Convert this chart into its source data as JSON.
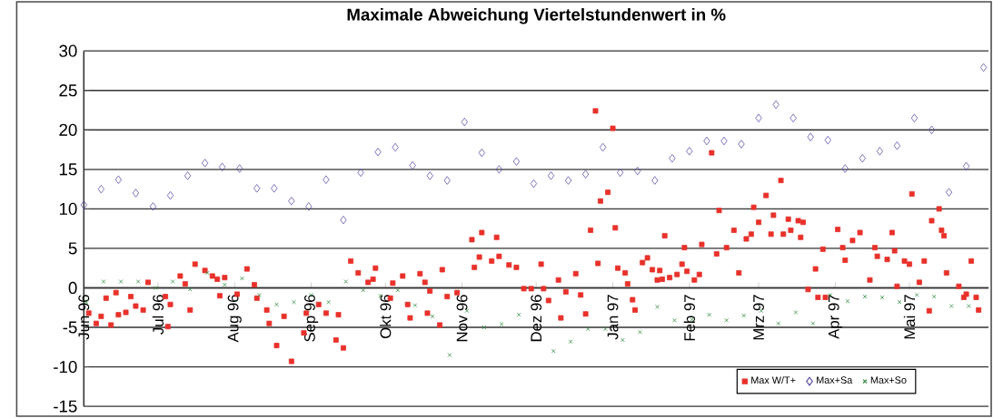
{
  "chart_data": {
    "type": "scatter",
    "title": "Maximale Abweichung Viertelstundenwert in %",
    "xlim": [
      "1996-06-01",
      "1997-06-02"
    ],
    "xticks": [
      {
        "value": "1996-06-01",
        "label": "Jun 96"
      },
      {
        "value": "1996-07-01",
        "label": "Jul 96"
      },
      {
        "value": "1996-08-01",
        "label": "Aug 96"
      },
      {
        "value": "1996-09-01",
        "label": "Sep 96"
      },
      {
        "value": "1996-10-01",
        "label": "Okt 96"
      },
      {
        "value": "1996-11-01",
        "label": "Nov 96"
      },
      {
        "value": "1996-12-01",
        "label": "Dez 96"
      },
      {
        "value": "1997-01-01",
        "label": "Jan 97"
      },
      {
        "value": "1997-02-01",
        "label": "Feb 97"
      },
      {
        "value": "1997-03-01",
        "label": "Mrz 97"
      },
      {
        "value": "1997-04-01",
        "label": "Apr 97"
      },
      {
        "value": "1997-05-01",
        "label": "Mai 97"
      }
    ],
    "ylim": [
      -15,
      30
    ],
    "yticks": [
      -15,
      -10,
      -5,
      0,
      5,
      10,
      15,
      20,
      25,
      30
    ],
    "grid": "y",
    "legend": "bottom right",
    "series": [
      {
        "name": "Max W/T+",
        "color": "#e8312a",
        "marker": "square",
        "x": [
          "1996-06-03",
          "1996-06-06",
          "1996-06-08",
          "1996-06-10",
          "1996-06-12",
          "1996-06-14",
          "1996-06-15",
          "1996-06-18",
          "1996-06-20",
          "1996-06-22",
          "1996-06-25",
          "1996-06-27",
          "1996-07-04",
          "1996-07-05",
          "1996-07-06",
          "1996-07-10",
          "1996-07-12",
          "1996-07-14",
          "1996-07-16",
          "1996-07-20",
          "1996-07-23",
          "1996-07-25",
          "1996-07-26",
          "1996-07-28",
          "1996-08-02",
          "1996-08-06",
          "1996-08-09",
          "1996-08-10",
          "1996-08-14",
          "1996-08-15",
          "1996-08-18",
          "1996-08-21",
          "1996-08-24",
          "1996-08-29",
          "1996-08-30",
          "1996-09-04",
          "1996-09-07",
          "1996-09-11",
          "1996-09-12",
          "1996-09-14",
          "1996-09-17",
          "1996-09-20",
          "1996-09-24",
          "1996-09-26",
          "1996-09-27",
          "1996-10-03",
          "1996-10-04",
          "1996-10-08",
          "1996-10-10",
          "1996-10-11",
          "1996-10-15",
          "1996-10-17",
          "1996-10-18",
          "1996-10-19",
          "1996-10-23",
          "1996-10-24",
          "1996-10-26",
          "1996-10-30",
          "1996-11-05",
          "1996-11-06",
          "1996-11-08",
          "1996-11-09",
          "1996-11-13",
          "1996-11-15",
          "1996-11-16",
          "1996-11-20",
          "1996-11-23",
          "1996-11-26",
          "1996-11-29",
          "1996-12-03",
          "1996-12-04",
          "1996-12-06",
          "1996-12-10",
          "1996-12-11",
          "1996-12-13",
          "1996-12-17",
          "1996-12-19",
          "1996-12-21",
          "1996-12-23",
          "1996-12-25",
          "1996-12-26",
          "1996-12-27",
          "1996-12-30",
          "1997-01-01",
          "1997-01-02",
          "1997-01-03",
          "1997-01-06",
          "1997-01-07",
          "1997-01-09",
          "1997-01-10",
          "1997-01-13",
          "1997-01-15",
          "1997-01-17",
          "1997-01-19",
          "1997-01-20",
          "1997-01-21",
          "1997-01-22",
          "1997-01-24",
          "1997-01-27",
          "1997-01-29",
          "1997-01-30",
          "1997-01-31",
          "1997-02-03",
          "1997-02-05",
          "1997-02-06",
          "1997-02-10",
          "1997-02-12",
          "1997-02-13",
          "1997-02-16",
          "1997-02-19",
          "1997-02-21",
          "1997-02-24",
          "1997-02-26",
          "1997-02-27",
          "1997-03-01",
          "1997-03-04",
          "1997-03-06",
          "1997-03-07",
          "1997-03-10",
          "1997-03-11",
          "1997-03-13",
          "1997-03-14",
          "1997-03-17",
          "1997-03-18",
          "1997-03-19",
          "1997-03-21",
          "1997-03-24",
          "1997-03-25",
          "1997-03-27",
          "1997-03-28",
          "1997-04-02",
          "1997-04-04",
          "1997-04-05",
          "1997-04-08",
          "1997-04-11",
          "1997-04-15",
          "1997-04-17",
          "1997-04-18",
          "1997-04-22",
          "1997-04-24",
          "1997-04-25",
          "1997-04-26",
          "1997-04-29",
          "1997-05-01",
          "1997-05-02",
          "1997-05-05",
          "1997-05-07",
          "1997-05-09",
          "1997-05-10",
          "1997-05-13",
          "1997-05-14",
          "1997-05-15",
          "1997-05-16",
          "1997-05-21",
          "1997-05-23",
          "1997-05-24",
          "1997-05-26",
          "1997-05-28",
          "1997-05-29"
        ],
        "values": [
          -3.2,
          -4.5,
          -3.6,
          -1.3,
          -4.7,
          -0.6,
          -3.4,
          -3.1,
          -1.1,
          -2.3,
          -2.8,
          0.7,
          -1.1,
          -4.9,
          -2.1,
          1.5,
          0.5,
          -2.8,
          3.0,
          2.2,
          1.5,
          1.1,
          -1.0,
          1.3,
          -0.8,
          2.4,
          0.4,
          -1.3,
          -2.8,
          -4.5,
          -7.3,
          -3.6,
          -9.3,
          -5.7,
          -3.2,
          -2.1,
          -3.2,
          -6.6,
          -3.4,
          -7.6,
          3.4,
          1.9,
          0.7,
          1.1,
          2.5,
          -1.3,
          0.6,
          1.5,
          -2.1,
          -3.8,
          1.8,
          0.7,
          -3.2,
          -0.4,
          -4.7,
          2.3,
          -1.1,
          -0.6,
          6.1,
          2.6,
          3.9,
          7.0,
          3.4,
          6.4,
          4.0,
          2.9,
          2.6,
          -0.1,
          -0.1,
          3.0,
          -0.1,
          -1.6,
          1.0,
          -3.8,
          -0.5,
          1.8,
          -0.9,
          -3.3,
          7.3,
          22.4,
          3.1,
          11.0,
          12.1,
          20.2,
          7.6,
          2.5,
          1.9,
          0.5,
          -1.5,
          -2.8,
          3.2,
          3.8,
          2.3,
          1.0,
          2.2,
          1.1,
          6.6,
          1.3,
          1.7,
          3.0,
          5.1,
          2.1,
          1.0,
          1.7,
          5.5,
          17.1,
          4.3,
          9.8,
          5.1,
          7.3,
          1.9,
          6.2,
          6.8,
          10.2,
          8.3,
          11.7,
          6.8,
          9.2,
          13.6,
          6.8,
          8.7,
          7.3,
          8.5,
          6.4,
          8.3,
          -0.2,
          2.4,
          -1.2,
          4.9,
          -1.2,
          7.4,
          5.1,
          3.5,
          6.0,
          7.0,
          1.0,
          5.1,
          4.0,
          3.6,
          7.0,
          4.7,
          0.2,
          3.4,
          3.0,
          11.9,
          0.7,
          3.4,
          -2.9,
          8.5,
          10.0,
          7.3,
          6.6,
          1.9,
          0.2,
          -1.2,
          -0.8,
          3.4,
          -1.2,
          -2.8
        ]
      },
      {
        "name": "Max+Sa",
        "color": "#5a4fa8",
        "marker": "diamond",
        "x": [
          "1996-06-01",
          "1996-06-08",
          "1996-06-15",
          "1996-06-22",
          "1996-06-29",
          "1996-07-06",
          "1996-07-13",
          "1996-07-20",
          "1996-07-27",
          "1996-08-03",
          "1996-08-10",
          "1996-08-17",
          "1996-08-24",
          "1996-08-31",
          "1996-09-07",
          "1996-09-14",
          "1996-09-21",
          "1996-09-28",
          "1996-10-05",
          "1996-10-12",
          "1996-10-19",
          "1996-10-26",
          "1996-11-02",
          "1996-11-09",
          "1996-11-16",
          "1996-11-23",
          "1996-11-30",
          "1996-12-07",
          "1996-12-14",
          "1996-12-21",
          "1996-12-28",
          "1997-01-04",
          "1997-01-11",
          "1997-01-18",
          "1997-01-25",
          "1997-02-01",
          "1997-02-08",
          "1997-02-15",
          "1997-02-22",
          "1997-03-01",
          "1997-03-08",
          "1997-03-15",
          "1997-03-22",
          "1997-03-29",
          "1997-04-05",
          "1997-04-12",
          "1997-04-19",
          "1997-04-26",
          "1997-05-03",
          "1997-05-10",
          "1997-05-17",
          "1997-05-24",
          "1997-05-31"
        ],
        "values": [
          10.5,
          12.5,
          13.7,
          12.0,
          10.3,
          11.7,
          14.2,
          15.8,
          15.3,
          15.1,
          12.6,
          12.6,
          11.0,
          10.3,
          13.7,
          8.6,
          14.6,
          17.2,
          17.8,
          15.5,
          14.2,
          13.6,
          21.0,
          17.1,
          15.0,
          16.0,
          13.2,
          14.2,
          13.6,
          14.4,
          17.8,
          14.6,
          14.8,
          13.6,
          16.4,
          17.3,
          18.6,
          18.6,
          18.2,
          21.5,
          23.2,
          21.5,
          19.1,
          18.7,
          15.1,
          16.4,
          17.3,
          18.0,
          21.5,
          20.0,
          12.1,
          15.4,
          27.9
        ]
      },
      {
        "name": "Max+So",
        "color": "#2e8b3e",
        "marker": "cross",
        "x": [
          "1996-06-02",
          "1996-06-09",
          "1996-06-16",
          "1996-06-23",
          "1996-06-30",
          "1996-07-07",
          "1996-07-14",
          "1996-07-21",
          "1996-07-28",
          "1996-08-04",
          "1996-08-11",
          "1996-08-18",
          "1996-08-25",
          "1996-09-01",
          "1996-09-08",
          "1996-09-15",
          "1996-09-22",
          "1996-09-29",
          "1996-10-06",
          "1996-10-13",
          "1996-10-20",
          "1996-10-27",
          "1996-11-03",
          "1996-11-10",
          "1996-11-17",
          "1996-11-24",
          "1996-12-01",
          "1996-12-08",
          "1996-12-15",
          "1996-12-22",
          "1996-12-29",
          "1997-01-05",
          "1997-01-12",
          "1997-01-19",
          "1997-01-26",
          "1997-02-02",
          "1997-02-09",
          "1997-02-16",
          "1997-02-23",
          "1997-03-02",
          "1997-03-09",
          "1997-03-16",
          "1997-03-23",
          "1997-03-30",
          "1997-04-06",
          "1997-04-13",
          "1997-04-20",
          "1997-04-27",
          "1997-05-04",
          "1997-05-11",
          "1997-05-18",
          "1997-05-25"
        ],
        "values": [
          -1.8,
          0.8,
          0.8,
          0.8,
          0.0,
          0.8,
          -0.2,
          1.9,
          0.4,
          1.2,
          -0.9,
          -2.1,
          -1.8,
          -0.9,
          -1.8,
          0.8,
          -0.3,
          -1.0,
          -0.3,
          -2.2,
          -3.6,
          -8.5,
          -2.9,
          -5.0,
          -4.6,
          -3.4,
          null,
          -8.0,
          -6.8,
          -5.2,
          -5.2,
          -6.6,
          -5.6,
          -2.4,
          -4.1,
          -4.0,
          -3.4,
          -4.1,
          -3.5,
          -2.9,
          -4.5,
          -3.1,
          -4.5,
          -0.9,
          -1.7,
          -1.1,
          -1.2,
          -1.8,
          -0.9,
          -1.1,
          -2.3,
          -2.3
        ]
      }
    ]
  }
}
